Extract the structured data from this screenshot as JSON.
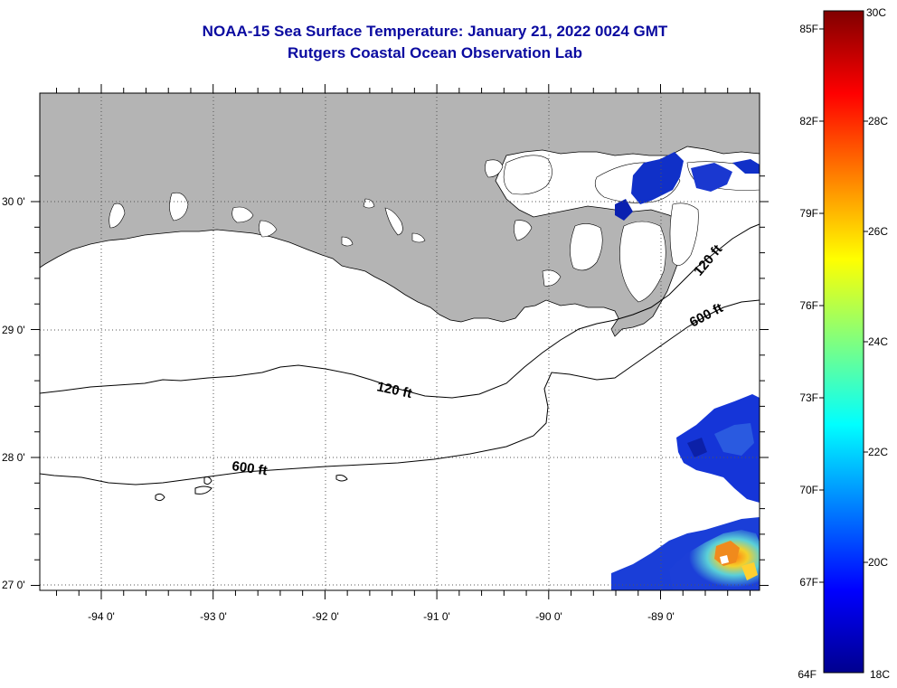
{
  "title": {
    "line1": "NOAA-15 Sea Surface Temperature:  January 21, 2022 0024 GMT",
    "line2": "Rutgers Coastal Ocean Observation Lab"
  },
  "map": {
    "lon_range": [
      -94.5,
      -88.0
    ],
    "lat_range": [
      26.95,
      30.85
    ],
    "lon_ticks": [
      {
        "value": -94,
        "label": "-94 0'"
      },
      {
        "value": -93,
        "label": "-93 0'"
      },
      {
        "value": -92,
        "label": "-92 0'"
      },
      {
        "value": -91,
        "label": "-91 0'"
      },
      {
        "value": -90,
        "label": "-90 0'"
      },
      {
        "value": -89,
        "label": "-89 0'"
      }
    ],
    "lat_ticks": [
      {
        "value": 30,
        "label": "30 0'"
      },
      {
        "value": 29,
        "label": "29 0'"
      },
      {
        "value": 28,
        "label": "28 0'"
      },
      {
        "value": 27,
        "label": "27 0'"
      }
    ],
    "gridlines": "dotted",
    "land_color": "#b4b4b4",
    "contours": [
      {
        "label": "120 ft",
        "depth_ft": 120
      },
      {
        "label": "600 ft",
        "depth_ft": 600
      }
    ],
    "contour_labels": [
      "120 ft",
      "600 ft",
      "120 ft",
      "600 ft"
    ]
  },
  "colorbar": {
    "range_c": [
      18,
      30
    ],
    "range_f": [
      64,
      86
    ],
    "fahrenheit_labels": [
      "85F",
      "82F",
      "79F",
      "76F",
      "73F",
      "70F",
      "67F",
      "64F"
    ],
    "celsius_labels": [
      "30C",
      "28C",
      "26C",
      "24C",
      "22C",
      "20C",
      "18C"
    ],
    "colormap": "jet"
  }
}
